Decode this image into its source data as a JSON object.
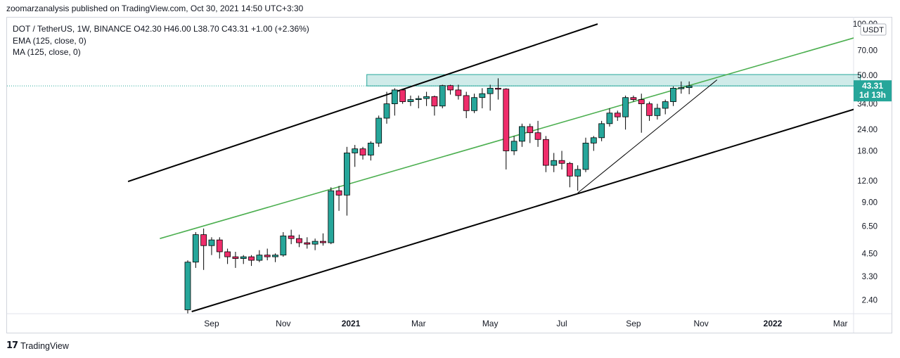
{
  "header": {
    "publisher": "zoomarzanalysis published on TradingView.com, Oct 30, 2021 14:50 UTC+3:30"
  },
  "legend": {
    "symbol_line": "DOT / TetherUS, 1W, BINANCE  O42.30  H46.00  L38.70  C43.31  +1.00 (+2.36%)",
    "ema": "EMA (125, close, 0)",
    "ma": "MA (125, close, 0)"
  },
  "footer": {
    "brand": "TradingView",
    "logo": "17"
  },
  "colors": {
    "up": "#26a69a",
    "down": "#ef2d6b",
    "green_line": "#4caf50",
    "zone": "#26a69a"
  },
  "chart_data": {
    "type": "candlestick",
    "symbol": "DOT / TetherUS",
    "timeframe": "1W",
    "exchange": "BINANCE",
    "y_scale": "log",
    "y_range": [
      2.05,
      105
    ],
    "currency": "USDT",
    "y_ticks": [
      "100.00",
      "70.00",
      "50.00",
      "34.00",
      "24.00",
      "18.00",
      "12.00",
      "9.00",
      "6.50",
      "4.50",
      "3.30",
      "2.40"
    ],
    "x_ticks": [
      {
        "label": "Sep",
        "week": 3
      },
      {
        "label": "Nov",
        "week": 12
      },
      {
        "label": "2021",
        "week": 20.5
      },
      {
        "label": "Mar",
        "week": 29
      },
      {
        "label": "May",
        "week": 38
      },
      {
        "label": "Jul",
        "week": 47
      },
      {
        "label": "Sep",
        "week": 56
      },
      {
        "label": "Nov",
        "week": 64.5
      },
      {
        "label": "2022",
        "week": 73.5
      },
      {
        "label": "Mar",
        "week": 82
      }
    ],
    "last_price": {
      "value": 43.31,
      "label": "43.31",
      "countdown": "1d 13h"
    },
    "ohlc": [
      [
        2.1,
        4.1,
        2.0,
        4.0
      ],
      [
        4.0,
        6.0,
        3.7,
        5.8
      ],
      [
        5.8,
        6.3,
        3.6,
        5.0
      ],
      [
        5.0,
        5.6,
        4.4,
        5.4
      ],
      [
        5.4,
        5.6,
        4.2,
        4.6
      ],
      [
        4.6,
        4.8,
        3.9,
        4.3
      ],
      [
        4.3,
        4.6,
        3.7,
        4.2
      ],
      [
        4.2,
        4.4,
        3.9,
        4.3
      ],
      [
        4.3,
        4.4,
        3.8,
        4.1
      ],
      [
        4.1,
        4.7,
        4.0,
        4.4
      ],
      [
        4.4,
        4.8,
        4.1,
        4.3
      ],
      [
        4.3,
        4.5,
        4.0,
        4.4
      ],
      [
        4.4,
        6.0,
        4.3,
        5.7
      ],
      [
        5.7,
        6.2,
        5.1,
        5.5
      ],
      [
        5.5,
        5.8,
        4.9,
        5.2
      ],
      [
        5.2,
        5.6,
        4.8,
        5.1
      ],
      [
        5.1,
        5.5,
        4.7,
        5.3
      ],
      [
        5.3,
        5.9,
        5.0,
        5.2
      ],
      [
        5.2,
        11.0,
        5.1,
        10.5
      ],
      [
        10.5,
        11.2,
        8.0,
        9.9
      ],
      [
        9.9,
        19.0,
        7.5,
        17.5
      ],
      [
        17.5,
        19.5,
        14.5,
        18.5
      ],
      [
        18.5,
        19.0,
        16.0,
        17.0
      ],
      [
        17.0,
        20.5,
        15.8,
        20.0
      ],
      [
        20.0,
        29.0,
        19.0,
        28.0
      ],
      [
        28.0,
        40.0,
        26.0,
        34.0
      ],
      [
        34.0,
        42.0,
        29.0,
        41.0
      ],
      [
        41.0,
        41.5,
        34.0,
        35.0
      ],
      [
        35.0,
        38.0,
        33.0,
        36.0
      ],
      [
        36.0,
        38.0,
        32.0,
        36.5
      ],
      [
        36.5,
        40.0,
        33.0,
        37.5
      ],
      [
        37.5,
        38.0,
        29.0,
        33.0
      ],
      [
        33.0,
        44.0,
        32.0,
        43.5
      ],
      [
        43.5,
        44.0,
        38.5,
        41.0
      ],
      [
        41.0,
        44.0,
        36.0,
        38.0
      ],
      [
        38.0,
        40.0,
        28.0,
        31.0
      ],
      [
        31.0,
        39.0,
        30.0,
        37.0
      ],
      [
        37.0,
        42.0,
        32.0,
        39.0
      ],
      [
        39.0,
        44.0,
        31.0,
        42.0
      ],
      [
        42.0,
        48.0,
        36.0,
        41.5
      ],
      [
        41.5,
        42.0,
        14.0,
        18.0
      ],
      [
        18.0,
        22.0,
        17.0,
        20.5
      ],
      [
        20.5,
        26.0,
        19.0,
        25.0
      ],
      [
        25.0,
        26.0,
        20.0,
        23.0
      ],
      [
        23.0,
        27.0,
        19.0,
        21.0
      ],
      [
        21.0,
        22.0,
        13.5,
        14.8
      ],
      [
        14.8,
        17.5,
        13.5,
        15.8
      ],
      [
        15.8,
        18.0,
        14.0,
        15.2
      ],
      [
        15.2,
        15.5,
        11.0,
        12.8
      ],
      [
        12.8,
        14.8,
        10.5,
        14.0
      ],
      [
        14.0,
        21.5,
        13.5,
        20.0
      ],
      [
        20.0,
        22.0,
        18.0,
        21.5
      ],
      [
        21.5,
        27.0,
        20.5,
        26.0
      ],
      [
        26.0,
        32.0,
        25.0,
        30.0
      ],
      [
        30.0,
        31.0,
        27.0,
        28.5
      ],
      [
        28.5,
        38.0,
        24.0,
        37.0
      ],
      [
        37.0,
        38.0,
        35.0,
        36.0
      ],
      [
        36.0,
        39.0,
        23.0,
        34.0
      ],
      [
        34.0,
        35.0,
        27.0,
        29.0
      ],
      [
        29.0,
        34.0,
        27.5,
        32.0
      ],
      [
        32.0,
        36.0,
        29.5,
        35.0
      ],
      [
        35.0,
        43.0,
        33.0,
        42.0
      ],
      [
        42.0,
        46.0,
        39.0,
        42.3
      ],
      [
        42.3,
        46.0,
        38.7,
        43.31
      ]
    ],
    "drawings": [
      {
        "type": "channel-upper",
        "color": "#000000",
        "from": {
          "week": -7.5,
          "price": 11.9
        },
        "to": {
          "week": 51.5,
          "price": 100
        }
      },
      {
        "type": "channel-lower",
        "color": "#000000",
        "from": {
          "week": 0.5,
          "price": 2.05
        },
        "to": {
          "week": 85.5,
          "price": 33.5
        }
      },
      {
        "type": "trendline",
        "color": "#4caf50",
        "from": {
          "week": -3.5,
          "price": 5.5
        },
        "to": {
          "week": 84.5,
          "price": 85
        }
      },
      {
        "type": "trendline",
        "color": "#000000",
        "from": {
          "week": 49,
          "price": 10.2
        },
        "to": {
          "week": 66.5,
          "price": 47
        }
      },
      {
        "type": "zone",
        "color": "#26a69a",
        "from": {
          "week": 22.5,
          "price": 43.3
        },
        "to": {
          "week": 84.5,
          "price": 50.5
        }
      }
    ]
  }
}
